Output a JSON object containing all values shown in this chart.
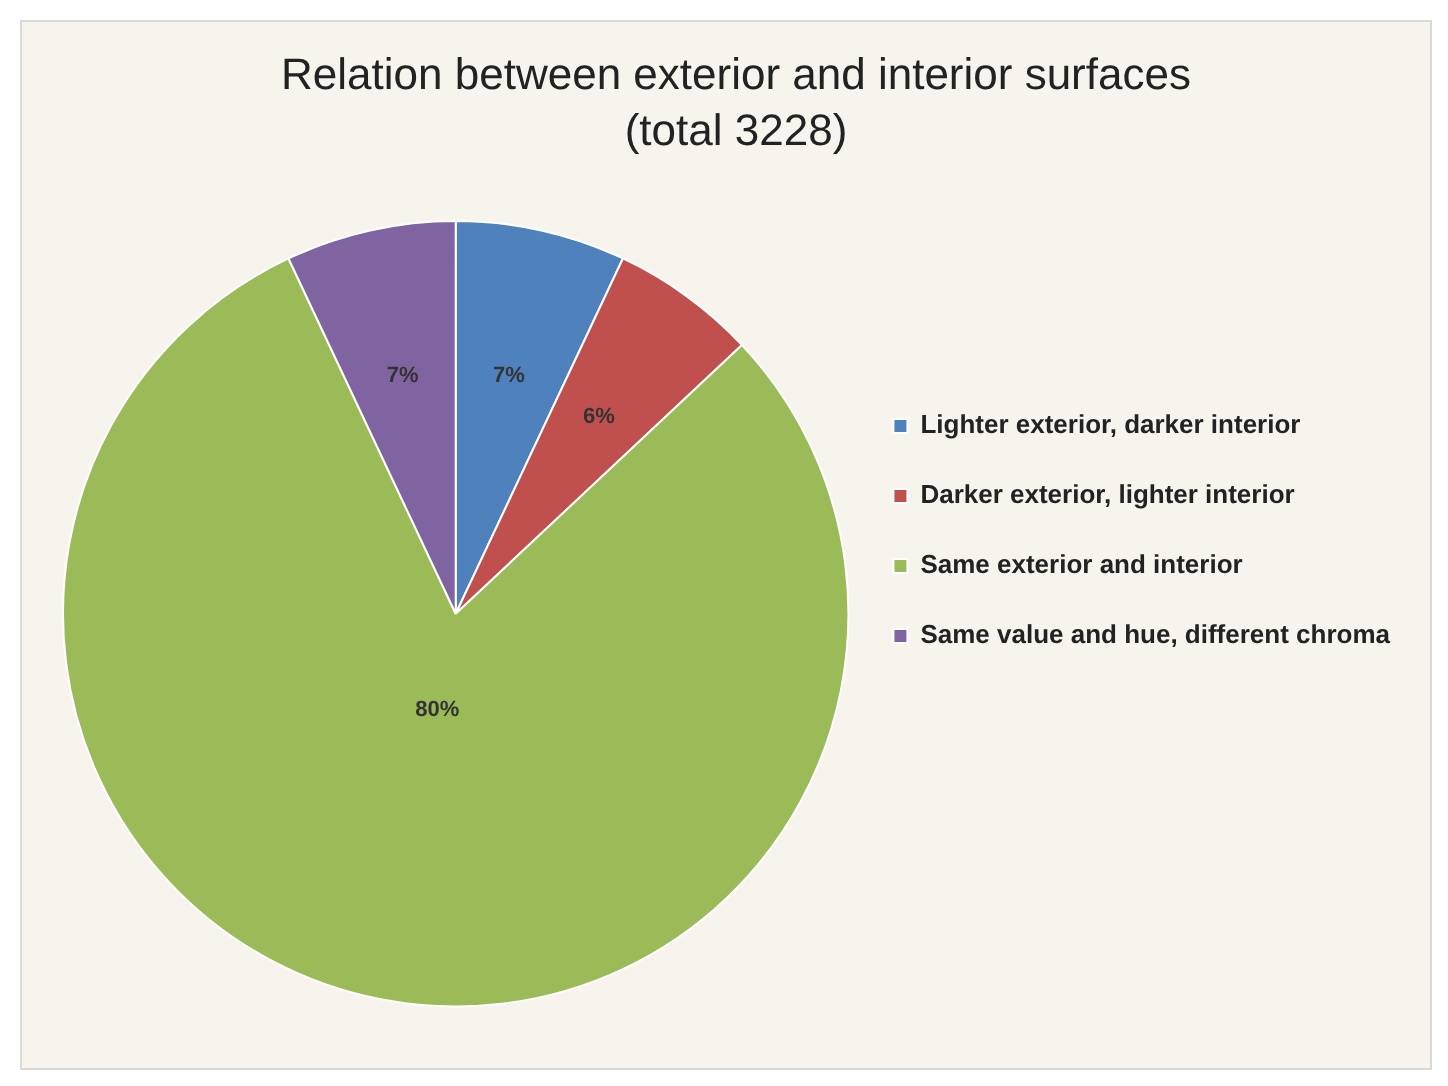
{
  "chart_data": {
    "type": "pie",
    "title": "Relation between exterior and interior surfaces",
    "subtitle": "(total 3228)",
    "categories": [
      "Lighter exterior, darker interior",
      "Darker exterior, lighter interior",
      "Same exterior and interior",
      "Same value and hue, different chroma"
    ],
    "values": [
      7,
      6,
      80,
      7
    ],
    "value_labels": [
      "7%",
      "6%",
      "80%",
      "7%"
    ],
    "colors": [
      "#4f81bd",
      "#c0504d",
      "#9bbb59",
      "#8064a2"
    ],
    "legend": "right"
  }
}
